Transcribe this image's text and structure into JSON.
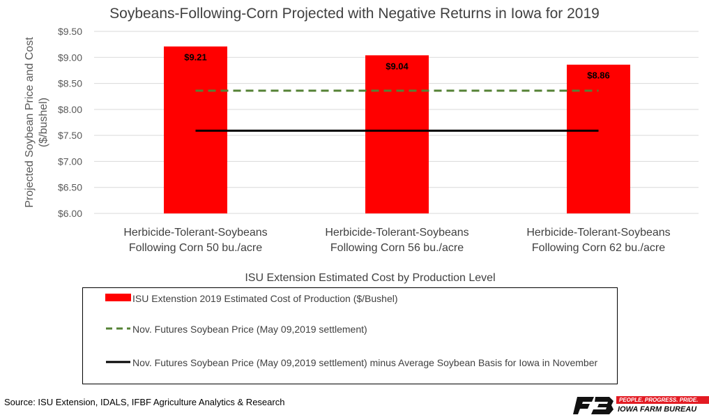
{
  "chart_data": {
    "type": "bar",
    "title": "Soybeans-Following-Corn Projected with Negative Returns in Iowa for 2019",
    "xlabel": "ISU Extension Estimated Cost by Production Level",
    "ylabel": "Projected Soybean Price and Cost ($/bushel)",
    "ylim": [
      6.0,
      9.5
    ],
    "yticks": [
      "$6.00",
      "$6.50",
      "$7.00",
      "$7.50",
      "$8.00",
      "$8.50",
      "$9.00",
      "$9.50"
    ],
    "ytick_values": [
      6.0,
      6.5,
      7.0,
      7.5,
      8.0,
      8.5,
      9.0,
      9.5
    ],
    "grid": true,
    "categories": [
      [
        "Herbicide-Tolerant-Soybeans",
        "Following Corn 50 bu./acre"
      ],
      [
        "Herbicide-Tolerant-Soybeans",
        "Following Corn 56 bu./acre"
      ],
      [
        "Herbicide-Tolerant-Soybeans",
        "Following Corn 62 bu./acre"
      ]
    ],
    "series": [
      {
        "name": "ISU Extenstion 2019 Estimated Cost of Production ($/Bushel)",
        "kind": "bar",
        "color": "#ff0000",
        "values": [
          9.21,
          9.04,
          8.86
        ],
        "labels": [
          "$9.21",
          "$9.04",
          "$8.86"
        ]
      },
      {
        "name": "Nov. Futures Soybean Price (May 09,2019 settlement)",
        "kind": "line",
        "style": "dashed",
        "color": "#548235",
        "values": [
          8.36,
          8.36,
          8.36
        ]
      },
      {
        "name": "Nov. Futures Soybean Price (May 09,2019 settlement) minus Average Soybean Basis for Iowa in November",
        "kind": "line",
        "style": "solid",
        "color": "#000000",
        "values": [
          7.59,
          7.59,
          7.59
        ]
      }
    ],
    "legend_position": "bottom"
  },
  "footer": {
    "source": "Source: ISU Extension, IDALS, IFBF Agriculture Analytics & Research"
  },
  "logo": {
    "tagline": "PEOPLE. PROGRESS. PRIDE.",
    "name": "IOWA FARM BUREAU",
    "color": "#e31b23"
  }
}
